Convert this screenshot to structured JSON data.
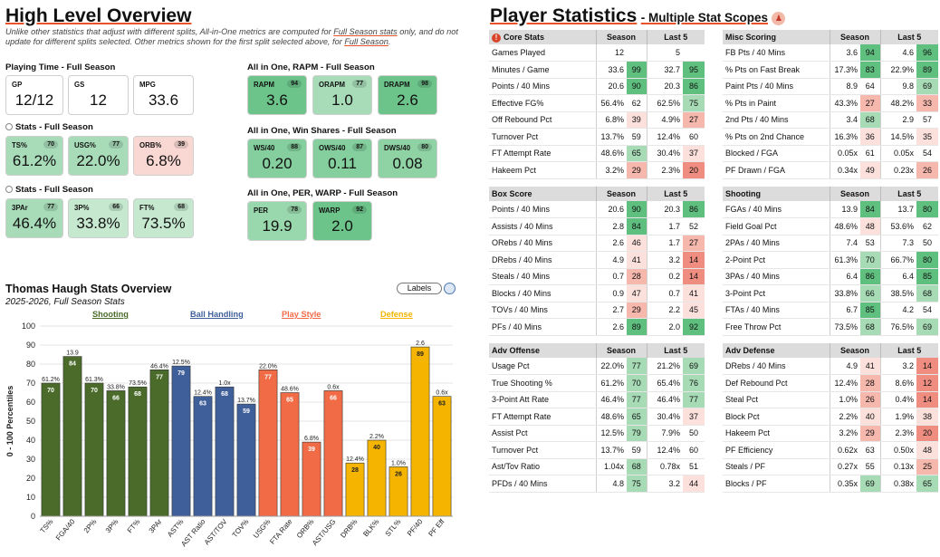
{
  "overview": {
    "title": "High Level Overview",
    "note_a": "Unlike other statistics that adjust with different splits, All-in-One metrics are computed for ",
    "note_link1": "Full Season stats",
    "note_b": " only, and do not update for different splits selected. Other metrics shown for the first split selected above, for ",
    "note_link2": "Full Season",
    "note_c": "."
  },
  "playing_time": {
    "title": "Playing Time - Full Season",
    "cards": [
      {
        "label": "GP",
        "value": "12/12"
      },
      {
        "label": "GS",
        "value": "12"
      },
      {
        "label": "MPG",
        "value": "33.6"
      }
    ]
  },
  "stats1": {
    "title": "Stats - Full Season",
    "cards": [
      {
        "label": "TS%",
        "value": "61.2%",
        "pct": "70"
      },
      {
        "label": "USG%",
        "value": "22.0%",
        "pct": "77"
      },
      {
        "label": "ORB%",
        "value": "6.8%",
        "pct": "39"
      }
    ]
  },
  "stats2": {
    "title": "Stats - Full Season",
    "cards": [
      {
        "label": "3PAr",
        "value": "46.4%",
        "pct": "77"
      },
      {
        "label": "3P%",
        "value": "33.8%",
        "pct": "66"
      },
      {
        "label": "FT%",
        "value": "73.5%",
        "pct": "68"
      }
    ]
  },
  "rapm": {
    "title": "All in One, RAPM - Full Season",
    "cards": [
      {
        "label": "RAPM",
        "value": "3.6",
        "pct": "94"
      },
      {
        "label": "ORAPM",
        "value": "1.0",
        "pct": "77"
      },
      {
        "label": "DRAPM",
        "value": "2.6",
        "pct": "98"
      }
    ]
  },
  "winshares": {
    "title": "All in One, Win Shares - Full Season",
    "cards": [
      {
        "label": "WS/40",
        "value": "0.20",
        "pct": "88"
      },
      {
        "label": "OWS/40",
        "value": "0.11",
        "pct": "87"
      },
      {
        "label": "DWS/40",
        "value": "0.08",
        "pct": "80"
      }
    ]
  },
  "perwarp": {
    "title": "All in One, PER, WARP - Full Season",
    "cards": [
      {
        "label": "PER",
        "value": "19.9",
        "pct": "78"
      },
      {
        "label": "WARP",
        "value": "2.0",
        "pct": "92"
      }
    ]
  },
  "overview_chart": {
    "title": "Thomas Haugh Stats Overview",
    "subtitle": "2025-2026, Full Season Stats",
    "labels_button": "Labels"
  },
  "chart_data": {
    "type": "bar",
    "ylabel": "0 - 100 Percentiles",
    "ylim": [
      0,
      100
    ],
    "yticks": [
      0,
      10,
      20,
      30,
      40,
      50,
      60,
      70,
      80,
      90,
      100
    ],
    "groups": [
      {
        "name": "Shooting",
        "color": "#4a6b2a"
      },
      {
        "name": "Ball Handling",
        "color": "#3f5f9a"
      },
      {
        "name": "Play Style",
        "color": "#f26b47"
      },
      {
        "name": "Defense",
        "color": "#f4b400"
      }
    ],
    "bars": [
      {
        "category": "TS%",
        "value": 70,
        "label": "61.2%",
        "group": 0
      },
      {
        "category": "FGA/40",
        "value": 84,
        "label": "13.9",
        "group": 0
      },
      {
        "category": "2P%",
        "value": 70,
        "label": "61.3%",
        "group": 0
      },
      {
        "category": "3P%",
        "value": 66,
        "label": "33.8%",
        "group": 0
      },
      {
        "category": "FT%",
        "value": 68,
        "label": "73.5%",
        "group": 0
      },
      {
        "category": "3PAr",
        "value": 77,
        "label": "46.4%",
        "group": 0
      },
      {
        "category": "AST%",
        "value": 79,
        "label": "12.5%",
        "group": 1
      },
      {
        "category": "AST Ratio",
        "value": 63,
        "label": "12.4%",
        "group": 1
      },
      {
        "category": "AST/TOV",
        "value": 68,
        "label": "1.0x",
        "group": 1
      },
      {
        "category": "TOV%",
        "value": 59,
        "label": "13.7%",
        "group": 1
      },
      {
        "category": "USG%",
        "value": 77,
        "label": "22.0%",
        "group": 2
      },
      {
        "category": "FTA Rate",
        "value": 65,
        "label": "48.6%",
        "group": 2
      },
      {
        "category": "ORB%",
        "value": 39,
        "label": "6.8%",
        "group": 2
      },
      {
        "category": "AST/USG",
        "value": 66,
        "label": "0.6x",
        "group": 2
      },
      {
        "category": "DRB%",
        "value": 28,
        "label": "12.4%",
        "group": 3
      },
      {
        "category": "BLK%",
        "value": 40,
        "label": "2.2%",
        "group": 3
      },
      {
        "category": "STL%",
        "value": 26,
        "label": "1.0%",
        "group": 3
      },
      {
        "category": "PF/40",
        "value": 89,
        "label": "2.6",
        "group": 3
      },
      {
        "category": "PF Eff",
        "value": 63,
        "label": "0.6x",
        "group": 3
      }
    ]
  },
  "player_stats": {
    "title": "Player Statistics",
    "subtitle": "Multiple Stat Scopes",
    "col_season": "Season",
    "col_last5": "Last 5"
  },
  "tables": {
    "core": {
      "title": "Core Stats",
      "rows": [
        [
          "Games Played",
          "12",
          "",
          "5",
          ""
        ],
        [
          "Minutes / Game",
          "33.6",
          "99",
          "32.7",
          "95"
        ],
        [
          "Points / 40 Mins",
          "20.6",
          "90",
          "20.3",
          "86"
        ],
        [
          "Effective FG%",
          "56.4%",
          "62",
          "62.5%",
          "75"
        ],
        [
          "Off Rebound Pct",
          "6.8%",
          "39",
          "4.9%",
          "27"
        ],
        [
          "Turnover Pct",
          "13.7%",
          "59",
          "12.4%",
          "60"
        ],
        [
          "FT Attempt Rate",
          "48.6%",
          "65",
          "30.4%",
          "37"
        ],
        [
          "Hakeem Pct",
          "3.2%",
          "29",
          "2.3%",
          "20"
        ]
      ]
    },
    "misc": {
      "title": "Misc Scoring",
      "rows": [
        [
          "FB Pts / 40 Mins",
          "3.6",
          "94",
          "4.6",
          "96"
        ],
        [
          "% Pts on Fast Break",
          "17.3%",
          "83",
          "22.9%",
          "89"
        ],
        [
          "Paint Pts / 40 Mins",
          "8.9",
          "64",
          "9.8",
          "69"
        ],
        [
          "% Pts in Paint",
          "43.3%",
          "27",
          "48.2%",
          "33"
        ],
        [
          "2nd Pts / 40 Mins",
          "3.4",
          "68",
          "2.9",
          "57"
        ],
        [
          "% Pts on 2nd Chance",
          "16.3%",
          "36",
          "14.5%",
          "35"
        ],
        [
          "Blocked / FGA",
          "0.05x",
          "61",
          "0.05x",
          "54"
        ],
        [
          "PF Drawn / FGA",
          "0.34x",
          "49",
          "0.23x",
          "26"
        ]
      ]
    },
    "box": {
      "title": "Box Score",
      "rows": [
        [
          "Points / 40 Mins",
          "20.6",
          "90",
          "20.3",
          "86"
        ],
        [
          "Assists / 40 Mins",
          "2.8",
          "84",
          "1.7",
          "52"
        ],
        [
          "ORebs / 40 Mins",
          "2.6",
          "46",
          "1.7",
          "27"
        ],
        [
          "DRebs / 40 Mins",
          "4.9",
          "41",
          "3.2",
          "14"
        ],
        [
          "Steals / 40 Mins",
          "0.7",
          "28",
          "0.2",
          "14"
        ],
        [
          "Blocks / 40 Mins",
          "0.9",
          "47",
          "0.7",
          "41"
        ],
        [
          "TOVs / 40 Mins",
          "2.7",
          "29",
          "2.2",
          "45"
        ],
        [
          "PFs / 40 Mins",
          "2.6",
          "89",
          "2.0",
          "92"
        ]
      ]
    },
    "shooting": {
      "title": "Shooting",
      "rows": [
        [
          "FGAs / 40 Mins",
          "13.9",
          "84",
          "13.7",
          "80"
        ],
        [
          "Field Goal Pct",
          "48.6%",
          "48",
          "53.6%",
          "62"
        ],
        [
          "2PAs / 40 Mins",
          "7.4",
          "53",
          "7.3",
          "50"
        ],
        [
          "2-Point Pct",
          "61.3%",
          "70",
          "66.7%",
          "80"
        ],
        [
          "3PAs / 40 Mins",
          "6.4",
          "86",
          "6.4",
          "85"
        ],
        [
          "3-Point Pct",
          "33.8%",
          "66",
          "38.5%",
          "68"
        ],
        [
          "FTAs / 40 Mins",
          "6.7",
          "85",
          "4.2",
          "54"
        ],
        [
          "Free Throw Pct",
          "73.5%",
          "68",
          "76.5%",
          "69"
        ]
      ]
    },
    "advoff": {
      "title": "Adv Offense",
      "rows": [
        [
          "Usage Pct",
          "22.0%",
          "77",
          "21.2%",
          "69"
        ],
        [
          "True Shooting %",
          "61.2%",
          "70",
          "65.4%",
          "76"
        ],
        [
          "3-Point Att Rate",
          "46.4%",
          "77",
          "46.4%",
          "77"
        ],
        [
          "FT Attempt Rate",
          "48.6%",
          "65",
          "30.4%",
          "37"
        ],
        [
          "Assist Pct",
          "12.5%",
          "79",
          "7.9%",
          "50"
        ],
        [
          "Turnover Pct",
          "13.7%",
          "59",
          "12.4%",
          "60"
        ],
        [
          "Ast/Tov Ratio",
          "1.04x",
          "68",
          "0.78x",
          "51"
        ],
        [
          "PFDs / 40 Mins",
          "4.8",
          "75",
          "3.2",
          "44"
        ]
      ]
    },
    "advdef": {
      "title": "Adv Defense",
      "rows": [
        [
          "DRebs / 40 Mins",
          "4.9",
          "41",
          "3.2",
          "14"
        ],
        [
          "Def Rebound Pct",
          "12.4%",
          "28",
          "8.6%",
          "12"
        ],
        [
          "Steal Pct",
          "1.0%",
          "26",
          "0.4%",
          "14"
        ],
        [
          "Block Pct",
          "2.2%",
          "40",
          "1.9%",
          "38"
        ],
        [
          "Hakeem Pct",
          "3.2%",
          "29",
          "2.3%",
          "20"
        ],
        [
          "PF Efficiency",
          "0.62x",
          "63",
          "0.50x",
          "48"
        ],
        [
          "Steals / PF",
          "0.27x",
          "55",
          "0.13x",
          "25"
        ],
        [
          "Blocks / PF",
          "0.35x",
          "69",
          "0.38x",
          "65"
        ]
      ]
    }
  }
}
